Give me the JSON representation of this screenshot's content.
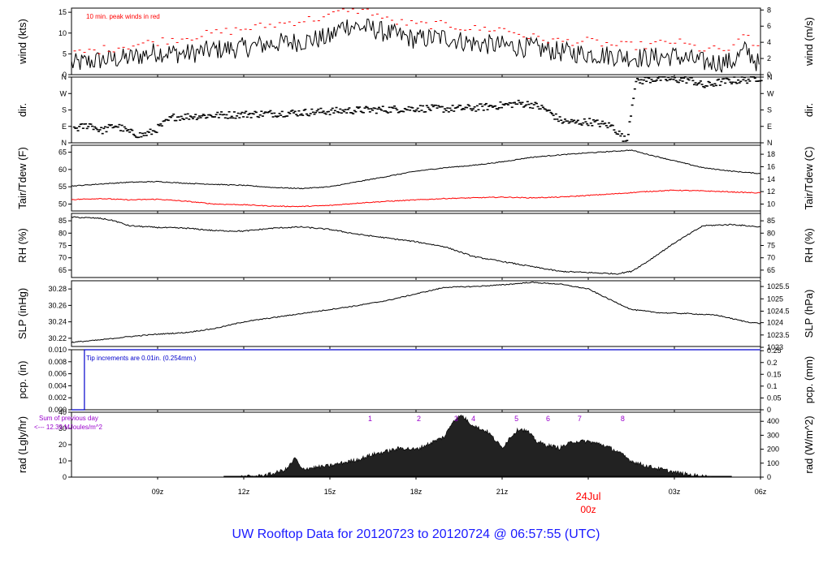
{
  "title": "UW Rooftop Data for 20120723  to  20120724 @ 06:57:55  (UTC)",
  "colors": {
    "frame": "#000000",
    "peak": "#ff0000",
    "dew": "#ff0000",
    "pcp": "#0000cc",
    "rad_note": "#9900cc",
    "title": "#1a1aff",
    "date_label": "#ff0000"
  },
  "time_axis": {
    "start_hour": 6.0,
    "end_hour": 30.0,
    "tick_labels": [
      "09z",
      "12z",
      "15z",
      "18z",
      "21z",
      "03z",
      "06z"
    ],
    "tick_hours": [
      9,
      12,
      15,
      18,
      21,
      27,
      30
    ],
    "date_label": "24Jul",
    "date_sub": "00z",
    "date_hour": 24
  },
  "chart_data": [
    {
      "type": "line",
      "ylabel": "wind (kts)",
      "ylabel_right": "wind (m/s)",
      "ylim": [
        0,
        16
      ],
      "yticks_left": [
        "0",
        "5",
        "10",
        "15"
      ],
      "yticks_left_vals": [
        0,
        5,
        10,
        15
      ],
      "yticks_right": [
        "0",
        "2",
        "4",
        "6",
        "8"
      ],
      "yticks_right_vals": [
        0,
        3.89,
        7.78,
        11.66,
        15.55
      ],
      "annotation": "10 min. peak winds in red",
      "series": [
        {
          "x": [
            6.0,
            7.0,
            8.0,
            9.0,
            10.0,
            11.0,
            12.0,
            13.0,
            14.0,
            15.0,
            15.5,
            16.0,
            16.5,
            17.0,
            18.0,
            19.0,
            20.0,
            21.0,
            22.0,
            23.0,
            24.0,
            25.0,
            26.0,
            27.0,
            28.0,
            29.0,
            29.5,
            30.0
          ],
          "values": [
            2.5,
            3.5,
            4.0,
            5.5,
            5.0,
            6.0,
            6.5,
            7.5,
            8.0,
            9.0,
            12.0,
            11.5,
            11.0,
            10.0,
            8.5,
            9.0,
            7.5,
            7.0,
            6.5,
            5.5,
            5.0,
            4.5,
            4.0,
            4.5,
            3.0,
            3.0,
            6.0,
            2.0
          ]
        },
        {
          "x": [
            6.0,
            7.0,
            8.0,
            9.0,
            10.0,
            11.0,
            12.0,
            13.0,
            14.0,
            15.0,
            15.5,
            16.0,
            16.5,
            17.0,
            18.0,
            19.0,
            20.0,
            21.0,
            22.0,
            23.0,
            24.0,
            25.0,
            26.0,
            27.0,
            28.0,
            29.0,
            29.5,
            30.0
          ],
          "values": [
            5,
            6,
            7,
            8,
            9,
            10,
            11,
            12,
            13,
            14,
            16,
            15.5,
            15,
            13,
            12,
            12,
            11,
            11,
            9,
            8,
            8,
            7,
            7,
            8,
            6,
            6,
            10,
            5
          ]
        }
      ]
    },
    {
      "type": "scatter",
      "ylabel": "dir.",
      "ylabel_right": "dir.",
      "ylim": [
        0,
        360
      ],
      "yticks_left": [
        "N",
        "E",
        "S",
        "W",
        "N"
      ],
      "yticks_left_vals": [
        0,
        90,
        180,
        270,
        360
      ],
      "yticks_right": [
        "N",
        "E",
        "S",
        "W",
        "N"
      ],
      "yticks_right_vals": [
        0,
        90,
        180,
        270,
        360
      ],
      "series": [
        {
          "x": [
            6.2,
            6.6,
            7.0,
            7.5,
            8.0,
            8.4,
            8.8,
            9.5,
            10.2,
            11.0,
            12.0,
            13.0,
            14.0,
            15.0,
            16.0,
            17.0,
            18.0,
            19.0,
            20.0,
            21.0,
            21.5,
            22.0,
            22.5,
            23.0,
            23.5,
            24.0,
            24.8,
            25.3,
            25.6,
            26.0,
            26.5,
            27.0,
            27.5,
            28.0,
            28.5,
            29.0,
            29.5,
            29.9
          ],
          "values": [
            80,
            100,
            65,
            95,
            55,
            40,
            60,
            140,
            145,
            150,
            155,
            160,
            165,
            172,
            178,
            182,
            188,
            185,
            190,
            205,
            215,
            210,
            180,
            120,
            110,
            115,
            90,
            5,
            330,
            345,
            350,
            345,
            345,
            310,
            330,
            340,
            345,
            355
          ]
        }
      ]
    },
    {
      "type": "line",
      "ylabel": "Tair/Tdew (F)",
      "ylabel_right": "Tair/Tdew (C)",
      "ylim": [
        48,
        67
      ],
      "yticks_left": [
        "50",
        "55",
        "60",
        "65"
      ],
      "yticks_left_vals": [
        50,
        55,
        60,
        65
      ],
      "yticks_right": [
        "10",
        "12",
        "14",
        "16",
        "18"
      ],
      "yticks_right_vals": [
        50,
        53.6,
        57.2,
        60.8,
        64.4
      ],
      "series": [
        {
          "x": [
            6.0,
            7.0,
            8.0,
            9.0,
            10.0,
            11.0,
            12.0,
            13.0,
            14.0,
            15.0,
            16.0,
            17.0,
            18.0,
            19.0,
            20.0,
            21.0,
            22.0,
            23.0,
            24.0,
            25.0,
            25.5,
            26.0,
            27.0,
            28.0,
            29.0,
            30.0
          ],
          "values": [
            55.2,
            55.8,
            56.3,
            56.5,
            56.0,
            55.7,
            55.4,
            54.8,
            54.5,
            55.0,
            56.5,
            58.0,
            59.5,
            60.5,
            61.2,
            62.2,
            63.5,
            64.2,
            64.8,
            65.3,
            65.6,
            64.5,
            62.5,
            60.5,
            59.5,
            58.8
          ]
        },
        {
          "x": [
            6.0,
            7.0,
            8.0,
            9.0,
            10.0,
            11.0,
            12.0,
            13.0,
            14.0,
            15.0,
            16.0,
            17.0,
            18.0,
            19.0,
            20.0,
            21.0,
            22.0,
            23.0,
            24.0,
            25.0,
            26.0,
            27.0,
            28.0,
            29.0,
            30.0
          ],
          "values": [
            51.3,
            51.6,
            51.2,
            51.4,
            50.8,
            50.0,
            49.8,
            49.4,
            49.3,
            49.6,
            50.3,
            50.8,
            51.2,
            51.6,
            51.8,
            52.0,
            51.8,
            52.0,
            52.5,
            53.0,
            53.6,
            54.0,
            53.8,
            53.5,
            53.2
          ]
        }
      ]
    },
    {
      "type": "line",
      "ylabel": "RH (%)",
      "ylabel_right": "RH (%)",
      "ylim": [
        62,
        88
      ],
      "yticks_left": [
        "65",
        "70",
        "75",
        "80",
        "85"
      ],
      "yticks_left_vals": [
        65,
        70,
        75,
        80,
        85
      ],
      "yticks_right": [
        "65",
        "70",
        "75",
        "80",
        "85"
      ],
      "yticks_right_vals": [
        65,
        70,
        75,
        80,
        85
      ],
      "series": [
        {
          "x": [
            6.0,
            7.0,
            7.5,
            8.0,
            9.0,
            10.0,
            11.0,
            12.0,
            13.0,
            14.0,
            15.0,
            16.0,
            17.0,
            18.0,
            19.0,
            20.0,
            21.0,
            22.0,
            23.0,
            24.0,
            25.0,
            25.5,
            26.0,
            27.0,
            28.0,
            29.0,
            30.0
          ],
          "values": [
            86.5,
            86.0,
            85.0,
            83.0,
            82.3,
            82.0,
            81.0,
            80.8,
            82.0,
            82.5,
            81.5,
            79.5,
            78.0,
            76.5,
            74.5,
            70.5,
            68.5,
            66.5,
            64.5,
            64.0,
            63.5,
            64.5,
            68.0,
            76.0,
            83.0,
            83.5,
            82.5
          ]
        }
      ]
    },
    {
      "type": "line",
      "ylabel": "SLP (inHg)",
      "ylabel_right": "SLP (hPa)",
      "ylim": [
        30.21,
        30.29
      ],
      "yticks_left": [
        "30.22",
        "30.24",
        "30.26",
        "30.28"
      ],
      "yticks_left_vals": [
        30.22,
        30.24,
        30.26,
        30.28
      ],
      "yticks_right": [
        "1023",
        "1023.5",
        "1024",
        "1024.5",
        "1025",
        "1025.5"
      ],
      "yticks_right_vals": [
        30.209,
        30.224,
        30.239,
        30.253,
        30.268,
        30.283
      ],
      "series": [
        {
          "x": [
            6.0,
            7.0,
            8.0,
            9.0,
            10.0,
            11.0,
            12.0,
            13.0,
            14.0,
            15.0,
            16.0,
            17.0,
            18.0,
            19.0,
            20.0,
            21.0,
            22.0,
            23.0,
            24.0,
            24.7,
            25.5,
            26.5,
            27.5,
            28.5,
            29.5,
            30.0
          ],
          "values": [
            30.215,
            30.218,
            30.222,
            30.225,
            30.227,
            30.232,
            30.24,
            30.245,
            30.25,
            30.255,
            30.26,
            30.266,
            30.274,
            30.282,
            30.283,
            30.285,
            30.288,
            30.286,
            30.28,
            30.268,
            30.255,
            30.251,
            30.25,
            30.248,
            30.24,
            30.238
          ]
        }
      ]
    },
    {
      "type": "line",
      "ylabel": "pcp. (in)",
      "ylabel_right": "pcp. (mm)",
      "ylim": [
        0,
        0.01
      ],
      "yticks_left": [
        "0.000",
        "0.002",
        "0.004",
        "0.006",
        "0.008",
        "0.010"
      ],
      "yticks_left_vals": [
        0,
        0.002,
        0.004,
        0.006,
        0.008,
        0.01
      ],
      "yticks_right": [
        "0",
        "0.05",
        "0.1",
        "0.15",
        "0.2",
        "0.25"
      ],
      "yticks_right_vals": [
        0,
        0.00197,
        0.00394,
        0.00591,
        0.00787,
        0.00984
      ],
      "annotation": "Tip increments are 0.01in. (0.254mm.)",
      "series": [
        {
          "x": [
            6.0,
            6.45,
            6.45,
            30.0
          ],
          "values": [
            0,
            0,
            0.01,
            0.01
          ]
        }
      ]
    },
    {
      "type": "area",
      "ylabel": "rad (Lgly/hr)",
      "ylabel_right": "rad (W/m^2)",
      "ylim": [
        0,
        40
      ],
      "yticks_left": [
        "0",
        "10",
        "20",
        "30",
        "40"
      ],
      "yticks_left_vals": [
        0,
        10,
        20,
        30,
        40
      ],
      "yticks_right": [
        "0",
        "100",
        "200",
        "300",
        "400"
      ],
      "yticks_right_vals": [
        0,
        8.6,
        17.2,
        25.8,
        34.4
      ],
      "annotation": "Sum of previous day",
      "annotation2": "<--- 12.39 MJoules/m^2",
      "markers": [
        "1",
        "2",
        "3",
        "4",
        "5",
        "6",
        "7",
        "8"
      ],
      "marker_hours": [
        16.4,
        18.1,
        19.4,
        20.0,
        21.5,
        22.6,
        23.7,
        25.2
      ],
      "series": [
        {
          "x": [
            11.9,
            12.5,
            13.0,
            13.5,
            13.8,
            14.0,
            14.5,
            15.0,
            15.5,
            16.0,
            16.5,
            17.0,
            17.5,
            18.0,
            18.5,
            19.0,
            19.3,
            19.6,
            19.9,
            20.2,
            20.5,
            21.0,
            21.3,
            21.6,
            21.9,
            22.2,
            22.5,
            23.0,
            23.5,
            24.0,
            24.5,
            25.0,
            25.5,
            26.0,
            26.5,
            27.0,
            27.5,
            28.0,
            28.3
          ],
          "values": [
            0,
            0.5,
            2,
            5,
            12,
            5,
            6,
            7,
            9,
            11,
            14,
            16,
            18,
            17,
            21,
            25,
            35,
            38,
            33,
            30,
            28,
            18,
            25,
            30,
            28,
            22,
            20,
            18,
            22,
            22,
            20,
            16,
            10,
            7,
            5,
            3,
            1.5,
            0.5,
            0
          ]
        }
      ]
    }
  ]
}
